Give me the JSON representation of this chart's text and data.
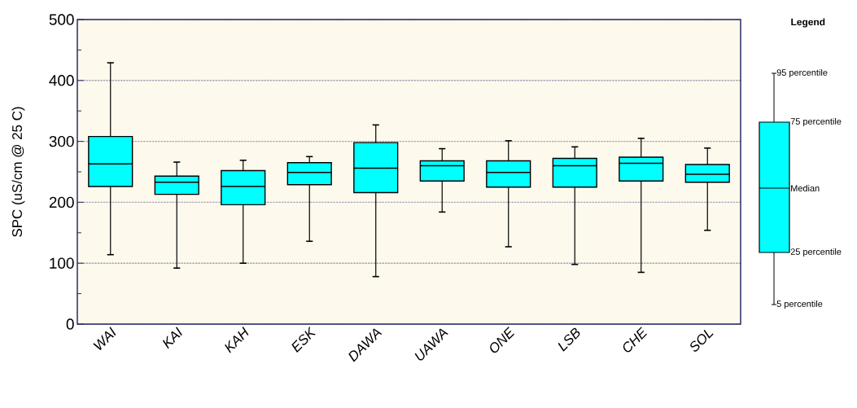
{
  "chart_data": {
    "type": "box",
    "ylabel": "SPC (uS/cm @ 25 C)",
    "legend_title": "Legend",
    "categories": [
      "WAI",
      "KAI",
      "KAH",
      "ESK",
      "DAWA",
      "UAWA",
      "ONE",
      "LSB",
      "CHE",
      "SOL"
    ],
    "boxes": [
      {
        "low": 114,
        "q1": 226,
        "median": 263,
        "q3": 308,
        "high": 429
      },
      {
        "low": 92,
        "q1": 213,
        "median": 233,
        "q3": 243,
        "high": 266
      },
      {
        "low": 100,
        "q1": 196,
        "median": 226,
        "q3": 252,
        "high": 269
      },
      {
        "low": 136,
        "q1": 229,
        "median": 249,
        "q3": 265,
        "high": 275
      },
      {
        "low": 78,
        "q1": 216,
        "median": 256,
        "q3": 298,
        "high": 327
      },
      {
        "low": 184,
        "q1": 235,
        "median": 260,
        "q3": 268,
        "high": 288
      },
      {
        "low": 127,
        "q1": 225,
        "median": 249,
        "q3": 268,
        "high": 301
      },
      {
        "low": 98,
        "q1": 225,
        "median": 260,
        "q3": 272,
        "high": 291
      },
      {
        "low": 85,
        "q1": 235,
        "median": 264,
        "q3": 274,
        "high": 305
      },
      {
        "low": 154,
        "q1": 233,
        "median": 246,
        "q3": 262,
        "high": 289
      }
    ],
    "color": "#00ffff",
    "ylim": [
      0,
      500
    ],
    "yticks": [
      0,
      100,
      200,
      300,
      400,
      500
    ],
    "grid": "y",
    "annotations": [
      "95 percentile",
      "75 percentile",
      "Median",
      "25 percentile",
      "5 percentile"
    ]
  }
}
